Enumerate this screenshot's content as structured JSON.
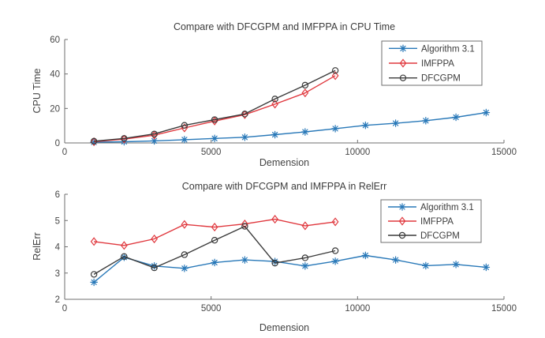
{
  "figure": {
    "background": "#ffffff",
    "axes_color": "#6f6f6f",
    "tick_label_color": "#474747",
    "title_color": "#3c3c3c",
    "legend_border_color": "#6f6f6f",
    "legend_background": "#ffffff"
  },
  "chart_data": [
    {
      "type": "line",
      "title": "Compare with DFCGPM and IMFPPA in CPU Time",
      "xlabel": "Demension",
      "ylabel": "CPU Time",
      "xlim": [
        0,
        15000
      ],
      "ylim": [
        0,
        60
      ],
      "xticks": [
        0,
        5000,
        10000,
        15000
      ],
      "yticks": [
        0,
        20,
        40,
        60
      ],
      "grid": false,
      "legend_position": "upper right",
      "series": [
        {
          "name": "Algorithm 3.1",
          "color": "#2878b8",
          "marker": "asterisk",
          "x": [
            1000,
            2030,
            3060,
            4090,
            5120,
            6150,
            7180,
            8210,
            9240,
            10270,
            11300,
            12330,
            13360,
            14390
          ],
          "y": [
            0.4,
            0.7,
            1.2,
            1.9,
            2.6,
            3.3,
            4.8,
            6.4,
            8.3,
            10.2,
            11.4,
            12.9,
            14.9,
            17.6
          ]
        },
        {
          "name": "IMFPPA",
          "color": "#e0383e",
          "marker": "diamond",
          "x": [
            1000,
            2030,
            3060,
            4090,
            5120,
            6150,
            7180,
            8210,
            9240
          ],
          "y": [
            0.7,
            2.2,
            4.5,
            8.7,
            12.7,
            16.4,
            22.5,
            29.0,
            39.0
          ]
        },
        {
          "name": "DFCGPM",
          "color": "#3a3a3a",
          "marker": "circle",
          "x": [
            1000,
            2030,
            3060,
            4090,
            5120,
            6150,
            7180,
            8210,
            9240
          ],
          "y": [
            1.0,
            2.6,
            5.2,
            10.2,
            13.5,
            16.8,
            25.5,
            33.5,
            42.0
          ]
        }
      ]
    },
    {
      "type": "line",
      "title": "Compare with DFCGPM and IMFPPA in RelErr",
      "xlabel": "Demension",
      "ylabel": "RelErr",
      "xlim": [
        0,
        15000
      ],
      "ylim": [
        2,
        6
      ],
      "xticks": [
        0,
        5000,
        10000,
        15000
      ],
      "yticks": [
        2,
        3,
        4,
        5,
        6
      ],
      "grid": false,
      "legend_position": "upper right",
      "series": [
        {
          "name": "Algorithm 3.1",
          "color": "#2878b8",
          "marker": "asterisk",
          "x": [
            1000,
            2030,
            3060,
            4090,
            5120,
            6150,
            7180,
            8210,
            9240,
            10270,
            11300,
            12330,
            13360,
            14390
          ],
          "y": [
            2.65,
            3.6,
            3.27,
            3.18,
            3.4,
            3.5,
            3.44,
            3.27,
            3.45,
            3.67,
            3.5,
            3.28,
            3.33,
            3.22
          ]
        },
        {
          "name": "IMFPPA",
          "color": "#e0383e",
          "marker": "diamond",
          "x": [
            1000,
            2030,
            3060,
            4090,
            5120,
            6150,
            7180,
            8210,
            9240
          ],
          "y": [
            4.2,
            4.05,
            4.3,
            4.85,
            4.75,
            4.87,
            5.05,
            4.8,
            4.95
          ]
        },
        {
          "name": "DFCGPM",
          "color": "#3a3a3a",
          "marker": "circle",
          "x": [
            1000,
            2030,
            3060,
            4090,
            5120,
            6150,
            7180,
            8210,
            9240
          ],
          "y": [
            2.95,
            3.63,
            3.2,
            3.7,
            4.25,
            4.78,
            3.38,
            3.58,
            3.85
          ]
        }
      ]
    }
  ]
}
